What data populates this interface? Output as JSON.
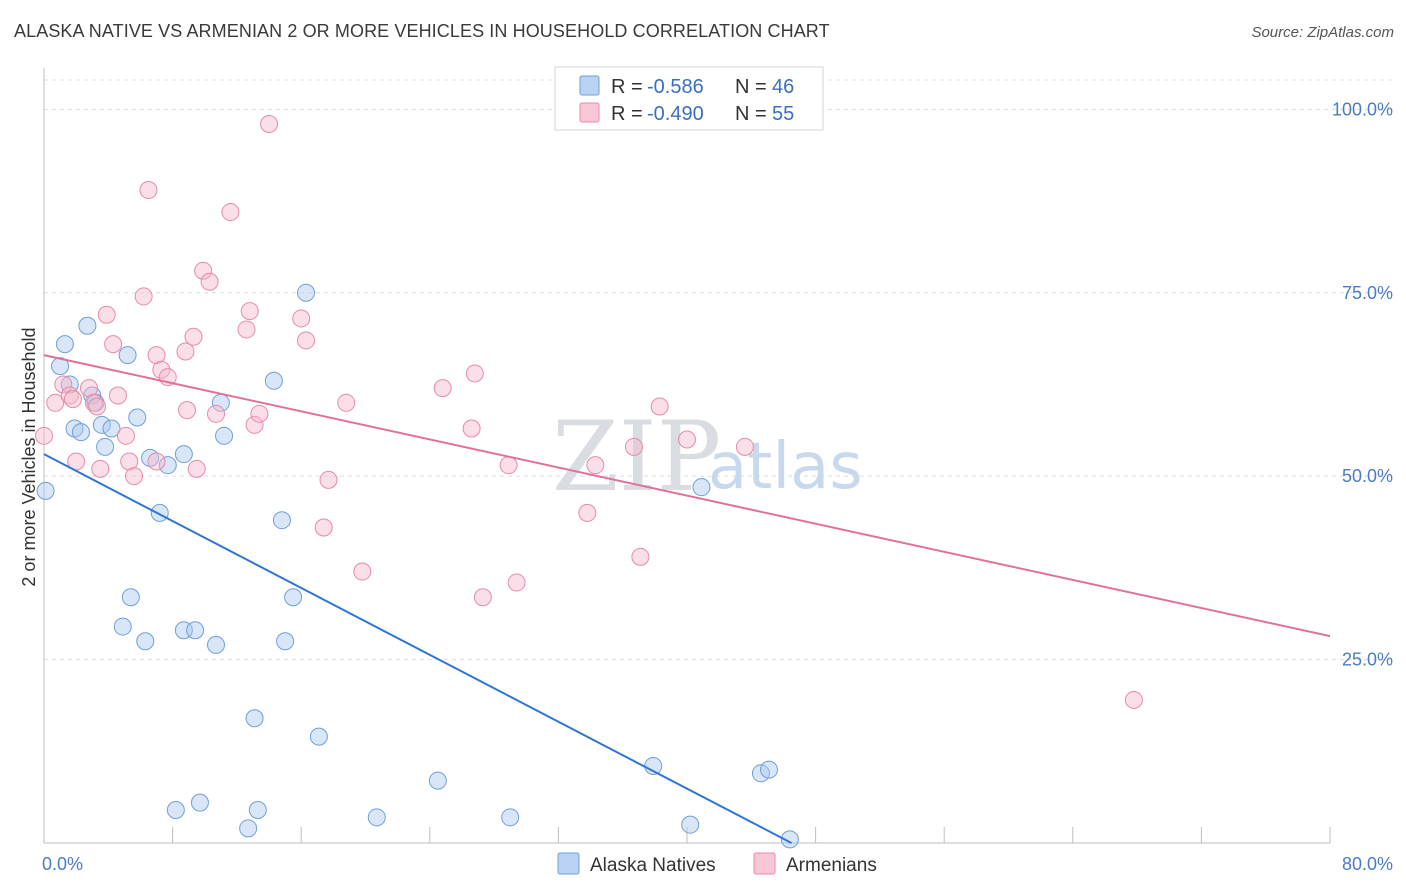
{
  "header": {
    "title": "ALASKA NATIVE VS ARMENIAN 2 OR MORE VEHICLES IN HOUSEHOLD CORRELATION CHART",
    "source": "Source: ZipAtlas.com"
  },
  "watermark": {
    "zip": "ZIP",
    "atlas": "atlas"
  },
  "legend": {
    "rows": [
      {
        "r_label": "R =",
        "r_value": "-0.586",
        "n_label": "N =",
        "n_value": "46",
        "color": "#a9c8f0"
      },
      {
        "r_label": "R =",
        "r_value": "-0.490",
        "n_label": "N =",
        "n_value": "55",
        "color": "#f6b8cb"
      }
    ]
  },
  "bottom_legend": [
    {
      "label": "Alaska Natives",
      "color": "#a9c8f0"
    },
    {
      "label": "Armenians",
      "color": "#f6b8cb"
    }
  ],
  "chart_data": {
    "type": "scatter",
    "title": "ALASKA NATIVE VS ARMENIAN 2 OR MORE VEHICLES IN HOUSEHOLD CORRELATION CHART",
    "ylabel": "2 or more Vehicles in Household",
    "xlabel": "",
    "xlim": [
      0,
      80
    ],
    "ylim": [
      0,
      104
    ],
    "x_tick_labels": [
      {
        "value": 0,
        "label": "0.0%"
      },
      {
        "value": 80,
        "label": "80.0%"
      }
    ],
    "y_tick_labels": [
      {
        "value": 25,
        "label": "25.0%"
      },
      {
        "value": 50,
        "label": "50.0%"
      },
      {
        "value": 75,
        "label": "75.0%"
      },
      {
        "value": 100,
        "label": "100.0%"
      }
    ],
    "grid": true,
    "legend_position": "top-center",
    "series": [
      {
        "name": "Alaska Natives",
        "color": "#a9c8f0",
        "edge": "#6f9fd8",
        "line_color": "#2f76d2",
        "trend": [
          [
            0,
            53
          ],
          [
            46.5,
            0
          ]
        ],
        "points": [
          [
            0.1,
            48
          ],
          [
            1.0,
            65
          ],
          [
            1.3,
            68
          ],
          [
            1.6,
            62.5
          ],
          [
            1.9,
            56.5
          ],
          [
            2.3,
            56
          ],
          [
            2.7,
            70.5
          ],
          [
            3.0,
            61
          ],
          [
            3.2,
            60
          ],
          [
            3.6,
            57
          ],
          [
            3.8,
            54
          ],
          [
            4.2,
            56.5
          ],
          [
            5.2,
            66.5
          ],
          [
            5.8,
            58
          ],
          [
            6.6,
            52.5
          ],
          [
            7.2,
            45
          ],
          [
            7.7,
            51.5
          ],
          [
            8.7,
            53
          ],
          [
            11.0,
            60
          ],
          [
            11.2,
            55.5
          ],
          [
            14.3,
            63
          ],
          [
            14.8,
            44
          ],
          [
            16.3,
            75
          ],
          [
            5.4,
            33.5
          ],
          [
            4.9,
            29.5
          ],
          [
            6.3,
            27.5
          ],
          [
            8.7,
            29
          ],
          [
            9.4,
            29
          ],
          [
            10.7,
            27
          ],
          [
            15.0,
            27.5
          ],
          [
            15.5,
            33.5
          ],
          [
            13.1,
            17
          ],
          [
            17.1,
            14.5
          ],
          [
            8.2,
            4.5
          ],
          [
            9.7,
            5.5
          ],
          [
            12.7,
            2
          ],
          [
            13.3,
            4.5
          ],
          [
            20.7,
            3.5
          ],
          [
            24.5,
            8.5
          ],
          [
            29.0,
            3.5
          ],
          [
            37.9,
            10.5
          ],
          [
            40.2,
            2.5
          ],
          [
            40.9,
            48.5
          ],
          [
            44.6,
            9.5
          ],
          [
            45.1,
            10
          ],
          [
            46.4,
            0.5
          ]
        ]
      },
      {
        "name": "Armenians",
        "color": "#f6b8cb",
        "edge": "#e88aa8",
        "line_color": "#e0709a",
        "trend": [
          [
            0,
            66.5
          ],
          [
            80,
            28.2
          ]
        ],
        "points": [
          [
            0,
            55.5
          ],
          [
            0.7,
            60
          ],
          [
            1.2,
            62.5
          ],
          [
            1.6,
            61
          ],
          [
            1.8,
            60.5
          ],
          [
            2.0,
            52
          ],
          [
            2.8,
            62
          ],
          [
            3.1,
            60
          ],
          [
            3.3,
            59.5
          ],
          [
            3.5,
            51
          ],
          [
            3.9,
            72
          ],
          [
            4.3,
            68
          ],
          [
            4.6,
            61
          ],
          [
            5.1,
            55.5
          ],
          [
            5.3,
            52
          ],
          [
            5.6,
            50
          ],
          [
            6.2,
            74.5
          ],
          [
            6.5,
            89
          ],
          [
            7.0,
            52
          ],
          [
            7.0,
            66.5
          ],
          [
            7.3,
            64.5
          ],
          [
            7.7,
            63.5
          ],
          [
            8.8,
            67
          ],
          [
            8.9,
            59
          ],
          [
            9.3,
            69
          ],
          [
            9.5,
            51
          ],
          [
            9.9,
            78
          ],
          [
            10.3,
            76.5
          ],
          [
            10.7,
            58.5
          ],
          [
            11.6,
            86
          ],
          [
            12.6,
            70
          ],
          [
            12.8,
            72.5
          ],
          [
            13.1,
            57
          ],
          [
            13.4,
            58.5
          ],
          [
            14.0,
            98
          ],
          [
            16.0,
            71.5
          ],
          [
            16.3,
            68.5
          ],
          [
            17.4,
            43
          ],
          [
            17.7,
            49.5
          ],
          [
            18.8,
            60
          ],
          [
            19.8,
            37
          ],
          [
            24.8,
            62
          ],
          [
            26.6,
            56.5
          ],
          [
            26.8,
            64
          ],
          [
            27.3,
            33.5
          ],
          [
            28.9,
            51.5
          ],
          [
            29.4,
            35.5
          ],
          [
            33.8,
            45
          ],
          [
            34.3,
            51.5
          ],
          [
            36.7,
            54
          ],
          [
            37.1,
            39
          ],
          [
            38.3,
            59.5
          ],
          [
            40.0,
            55
          ],
          [
            43.6,
            54
          ],
          [
            67.8,
            19.5
          ]
        ]
      }
    ]
  }
}
